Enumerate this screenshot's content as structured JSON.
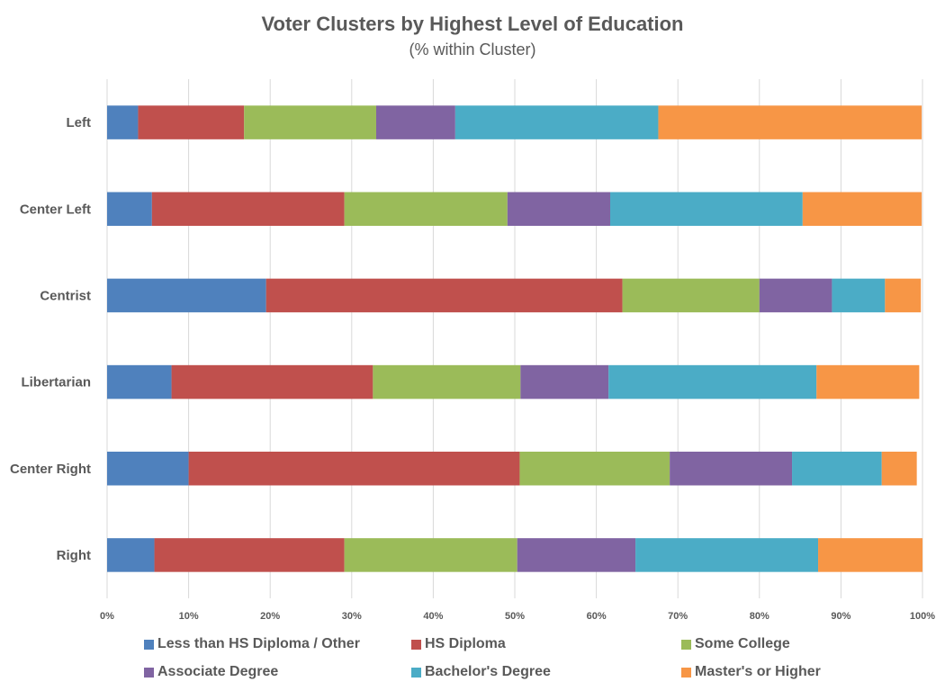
{
  "chart_data": {
    "type": "bar",
    "orientation": "horizontal",
    "stacked": "percent",
    "title": "Voter Clusters by Highest Level of Education",
    "subtitle": "(% within Cluster)",
    "xlabel": "",
    "ylabel": "",
    "xlim": [
      0,
      100
    ],
    "x_ticks": [
      "0%",
      "10%",
      "20%",
      "30%",
      "40%",
      "50%",
      "60%",
      "70%",
      "80%",
      "90%",
      "100%"
    ],
    "grid": "vertical",
    "legend_position": "bottom",
    "categories": [
      "Left",
      "Center Left",
      "Centrist",
      "Libertarian",
      "Center Right",
      "Right"
    ],
    "series": [
      {
        "name": "Less than HS Diploma / Other",
        "color": "#4f81bd",
        "values": [
          3.8,
          5.5,
          19.5,
          7.9,
          10.0,
          5.8
        ]
      },
      {
        "name": "HS Diploma",
        "color": "#c0504d",
        "values": [
          13.0,
          23.6,
          43.7,
          24.7,
          40.6,
          23.3
        ]
      },
      {
        "name": "Some College",
        "color": "#9bbb59",
        "values": [
          16.2,
          20.0,
          16.8,
          18.1,
          18.4,
          21.2
        ]
      },
      {
        "name": "Associate Degree",
        "color": "#8064a2",
        "values": [
          9.7,
          12.6,
          8.9,
          10.8,
          15.0,
          14.5
        ]
      },
      {
        "name": "Bachelor's Degree",
        "color": "#4bacc6",
        "values": [
          24.9,
          23.6,
          6.5,
          25.5,
          11.0,
          22.4
        ]
      },
      {
        "name": "Master's or Higher",
        "color": "#f79646",
        "values": [
          32.3,
          14.6,
          4.4,
          12.6,
          4.3,
          12.8
        ]
      }
    ]
  }
}
